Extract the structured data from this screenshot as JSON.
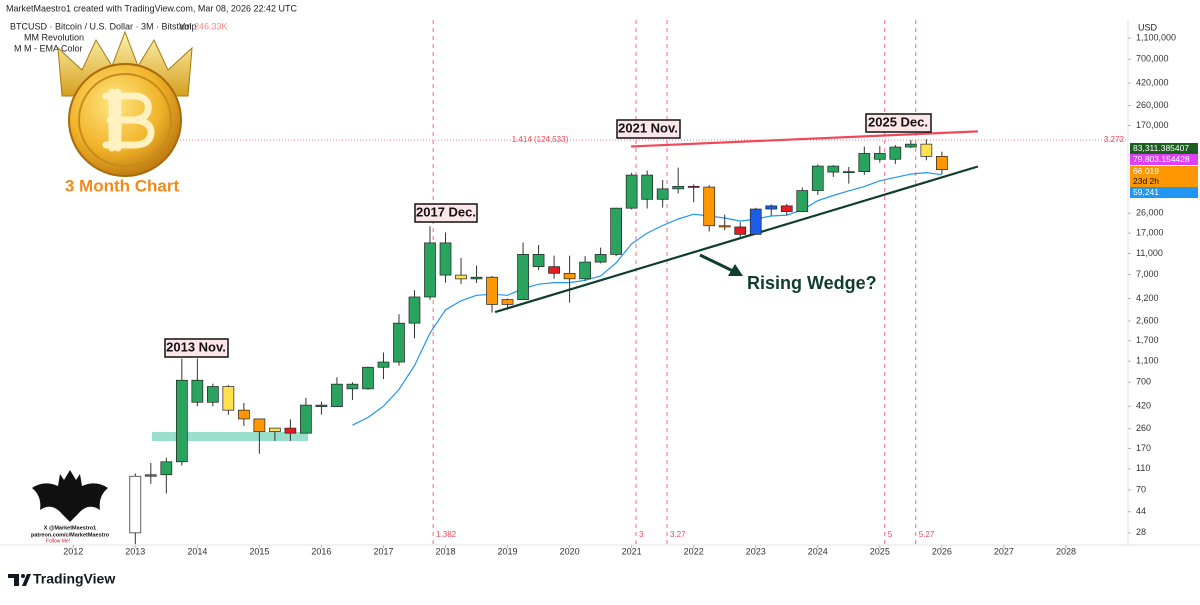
{
  "chart_data": {
    "type": "candlestick",
    "created_by": "MarketMaestro1 created with TradingView.com, Mar 08, 2026 22:42 UTC",
    "title": "BTCUSD · Bitcoin / U.S. Dollar · 3M · Bitstamp",
    "volume_label": "Vol",
    "volume_value": "246.33K",
    "indicators": [
      "MM Revolution",
      "M M - EMA Color"
    ],
    "logo_caption": "3 Month Chart",
    "bat_caption": [
      "X @MarketMaestro1",
      "patreon.com/c/MarketMaestro",
      "Follow Me!"
    ],
    "footer": "TradingView",
    "currency": "USD",
    "log_scale": true,
    "grid": false,
    "xlim": [
      2010.9,
      2029.0
    ],
    "xticks": [
      2012,
      2013,
      2014,
      2015,
      2016,
      2017,
      2018,
      2019,
      2020,
      2021,
      2022,
      2023,
      2024,
      2025,
      2026,
      2027,
      2028
    ],
    "ylim": [
      21.6,
      1620000
    ],
    "yticks": [
      {
        "value": 28,
        "label": "28"
      },
      {
        "value": 44,
        "label": "44"
      },
      {
        "value": 70,
        "label": "70"
      },
      {
        "value": 110,
        "label": "110"
      },
      {
        "value": 170,
        "label": "170"
      },
      {
        "value": 260,
        "label": "260"
      },
      {
        "value": 420,
        "label": "420"
      },
      {
        "value": 700,
        "label": "700"
      },
      {
        "value": 1100,
        "label": "1,100"
      },
      {
        "value": 1700,
        "label": "1,700"
      },
      {
        "value": 2600,
        "label": "2,600"
      },
      {
        "value": 4200,
        "label": "4,200"
      },
      {
        "value": 7000,
        "label": "7,000"
      },
      {
        "value": 11000,
        "label": "11,000"
      },
      {
        "value": 17000,
        "label": "17,000"
      },
      {
        "value": 26000,
        "label": "26,000"
      },
      {
        "value": 170000,
        "label": "170,000"
      },
      {
        "value": 260000,
        "label": "260,000"
      },
      {
        "value": 420000,
        "label": "420,000"
      },
      {
        "value": 700000,
        "label": "700,000"
      },
      {
        "value": 1100000,
        "label": "1,100,000"
      }
    ],
    "candles": {
      "x": [
        2013,
        2013.25,
        2013.5,
        2013.75,
        2014,
        2014.25,
        2014.5,
        2014.75,
        2015,
        2015.25,
        2015.5,
        2015.75,
        2016,
        2016.25,
        2016.5,
        2016.75,
        2017,
        2017.25,
        2017.5,
        2017.75,
        2018,
        2018.25,
        2018.5,
        2018.75,
        2019,
        2019.25,
        2019.5,
        2019.75,
        2020,
        2020.25,
        2020.5,
        2020.75,
        2021,
        2021.25,
        2021.5,
        2021.75,
        2022,
        2022.25,
        2022.5,
        2022.75,
        2023,
        2023.25,
        2023.5,
        2023.75,
        2024,
        2024.25,
        2024.5,
        2024.75,
        2025,
        2025.25,
        2025.5,
        2025.75,
        2026
      ],
      "open": [
        28,
        94,
        97,
        128,
        732,
        457,
        640,
        386,
        320,
        244,
        263,
        236,
        430,
        416,
        673,
        609,
        966,
        1080,
        2480,
        4340,
        13800,
        6930,
        6390,
        6625,
        3700,
        4100,
        10800,
        8300,
        7200,
        6400,
        9150,
        10780,
        28990,
        58800,
        35040,
        43800,
        46200,
        45500,
        19900,
        19400,
        16550,
        28450,
        30450,
        26950,
        42250,
        71300,
        62700,
        63300,
        93400,
        82500,
        107100,
        114000,
        87800
      ],
      "high": [
        100,
        125,
        140,
        1163,
        1165,
        680,
        660,
        450,
        320,
        265,
        317,
        502,
        465,
        780,
        700,
        980,
        1325,
        3000,
        5000,
        19666,
        17250,
        9990,
        8500,
        6800,
        4200,
        13880,
        13200,
        10500,
        10500,
        10400,
        12470,
        29300,
        61780,
        64900,
        52900,
        69000,
        48200,
        47400,
        25200,
        21400,
        29200,
        31400,
        31800,
        45000,
        73800,
        72800,
        70000,
        108300,
        109600,
        111900,
        124500,
        126200,
        97000
      ],
      "low": [
        22,
        80,
        65,
        118,
        420,
        420,
        350,
        275,
        152,
        200,
        200,
        236,
        350,
        415,
        480,
        595,
        750,
        1000,
        1800,
        4100,
        5900,
        5750,
        5860,
        3120,
        3300,
        4050,
        7700,
        6400,
        3850,
        6150,
        8900,
        10400,
        28200,
        28800,
        29300,
        39600,
        32900,
        17600,
        18150,
        15500,
        16500,
        24750,
        24900,
        26600,
        38500,
        56500,
        49000,
        58900,
        76600,
        74500,
        105000,
        80600,
        60000
      ],
      "close": [
        94,
        97,
        128,
        732,
        457,
        640,
        386,
        320,
        244,
        263,
        236,
        430,
        416,
        673,
        609,
        966,
        1080,
        2480,
        4340,
        13800,
        6930,
        6390,
        6625,
        3700,
        4100,
        10800,
        8300,
        7200,
        6400,
        9150,
        10780,
        28990,
        58800,
        35040,
        43800,
        46200,
        45500,
        19900,
        19400,
        16550,
        28450,
        30450,
        26950,
        42250,
        71300,
        62700,
        63300,
        93400,
        82500,
        107100,
        114000,
        87800,
        66019
      ],
      "colors": [
        "#ffffff",
        "#2aa35e",
        "#2aa35e",
        "#2aa35e",
        "#2aa35e",
        "#2aa35e",
        "#ffe14d",
        "#ff9800",
        "#ff9800",
        "#ffe14d",
        "#e31b23",
        "#2aa35e",
        "#2aa35e",
        "#2aa35e",
        "#2aa35e",
        "#2aa35e",
        "#2aa35e",
        "#2aa35e",
        "#2aa35e",
        "#2aa35e",
        "#2aa35e",
        "#ffe14d",
        "#2aa35e",
        "#ff9800",
        "#ff9800",
        "#2aa35e",
        "#2aa35e",
        "#e31b23",
        "#ff9800",
        "#2aa35e",
        "#2aa35e",
        "#2aa35e",
        "#2aa35e",
        "#2aa35e",
        "#2aa35e",
        "#2aa35e",
        "#e31b23",
        "#ff9800",
        "#ff9800",
        "#e31b23",
        "#1f5ce6",
        "#1f5ce6",
        "#e31b23",
        "#2aa35e",
        "#2aa35e",
        "#2aa35e",
        "#2aa35e",
        "#2aa35e",
        "#2aa35e",
        "#2aa35e",
        "#2aa35e",
        "#ffe14d",
        "#ff9800"
      ]
    },
    "ema": {
      "color": "#2196f3",
      "x": [
        2016.5,
        2016.75,
        2017,
        2017.25,
        2017.5,
        2017.75,
        2018,
        2018.25,
        2018.5,
        2018.75,
        2019,
        2019.25,
        2019.5,
        2019.75,
        2020,
        2020.25,
        2020.5,
        2020.75,
        2021,
        2021.25,
        2021.5,
        2021.75,
        2022,
        2022.25,
        2022.5,
        2022.75,
        2023,
        2023.25,
        2023.5,
        2023.75,
        2024,
        2024.25,
        2024.5,
        2024.75,
        2025,
        2025.25,
        2025.5,
        2025.75,
        2026
      ],
      "values": [
        280,
        330,
        420,
        600,
        1000,
        2000,
        3300,
        4000,
        4500,
        4600,
        4500,
        5200,
        5700,
        5900,
        5900,
        6200,
        6800,
        9000,
        13500,
        17000,
        20000,
        23000,
        25500,
        24500,
        23500,
        22000,
        23000,
        24500,
        25000,
        28000,
        34000,
        38000,
        42000,
        46000,
        52000,
        56000,
        60000,
        62000,
        59241
      ]
    },
    "trendlines": [
      {
        "color": "#f0485a",
        "x": [
          2020.99,
          2026.58
        ],
        "y": [
          108400,
          149600
        ]
      },
      {
        "color": "#0f3d2e",
        "x": [
          2018.8,
          2026.58
        ],
        "y": [
          3140,
          70600
        ]
      }
    ],
    "fib_level": {
      "value": 124533,
      "label": "1.414 (124,533)",
      "right_label": "3.272",
      "color": "#f0485a"
    },
    "time_lines": [
      {
        "x": 2017.8,
        "label": "1.382"
      },
      {
        "x": 2021.07,
        "label": "3"
      },
      {
        "x": 2021.57,
        "label": "3.27"
      },
      {
        "x": 2025.08,
        "label": "5"
      },
      {
        "x": 2025.58,
        "label": "5.27"
      }
    ],
    "annotations": [
      "2013 Nov.",
      "2017 Dec.",
      "2021 Nov.",
      "2025 Dec.",
      "Rising Wedge?"
    ],
    "price_labels": [
      {
        "value": 83311.385407,
        "label": "83,311.385407",
        "color": "#1b5e20"
      },
      {
        "value": 79803.154428,
        "label": "79,803.154428",
        "color": "#e040fb"
      },
      {
        "value": 66019,
        "label": "66,019",
        "color": "#ff9800"
      },
      {
        "value": 59241,
        "label": "59,241",
        "color": "#2196f3"
      }
    ],
    "countdown": "23d 2h"
  }
}
